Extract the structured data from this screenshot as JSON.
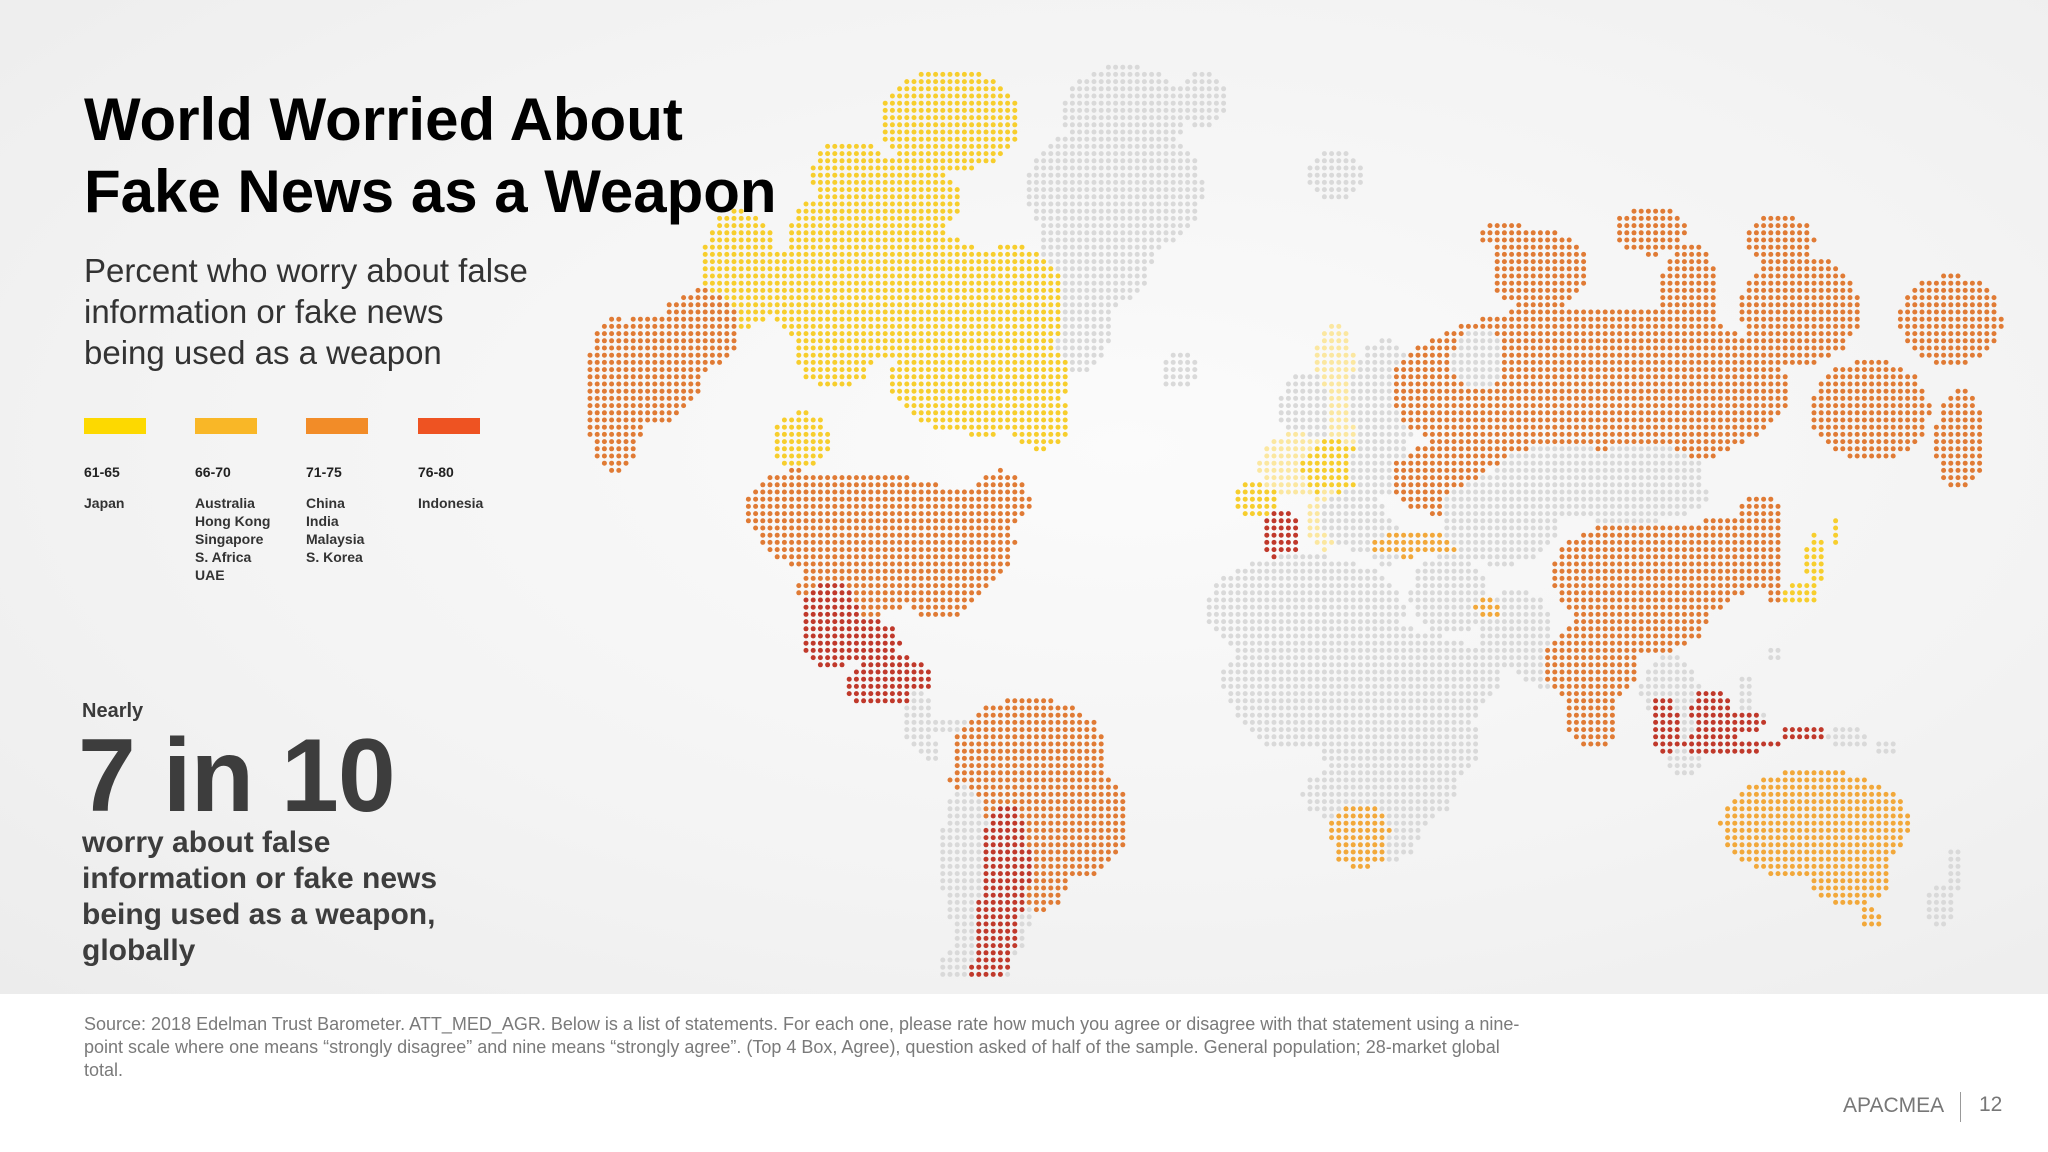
{
  "title": "World Worried About\nFake News as a Weapon",
  "subtitle": "Percent who worry about false\ninformation or fake news\nbeing used as a weapon",
  "legend": [
    {
      "range": "61-65",
      "color": "#FDD900",
      "countries": [
        "Japan"
      ]
    },
    {
      "range": "66-70",
      "color": "#F9B727",
      "countries": [
        "Australia",
        "Hong Kong",
        "Singapore",
        "S. Africa",
        "UAE"
      ]
    },
    {
      "range": "71-75",
      "color": "#F28C28",
      "countries": [
        "China",
        "India",
        "Malaysia",
        "S. Korea"
      ]
    },
    {
      "range": "76-80",
      "color": "#EE5322",
      "countries": [
        "Indonesia"
      ]
    }
  ],
  "stat": {
    "prefix": "Nearly",
    "value": "7 in 10",
    "description": "worry about false\ninformation or fake news\nbeing used as a weapon,\nglobally"
  },
  "source": "Source: 2018 Edelman Trust Barometer. ATT_MED_AGR. Below is a list of statements. For each one, please rate how much you agree or disagree with that statement using a nine-point scale where one means “strongly disagree” and nine means “strongly agree”. (Top 4 Box, Agree), question asked of half of the sample. General population; 28-market global total.",
  "footer": {
    "label": "APACMEA",
    "page": "12"
  },
  "map_colors": {
    "no_data": "#D9D9D9",
    "band_61_65": "#F7CE2D",
    "band_66_70": "#F2A83A",
    "band_71_75": "#E07B35",
    "band_76_80": "#C0392B",
    "light_yellow": "#FBE7A0"
  }
}
